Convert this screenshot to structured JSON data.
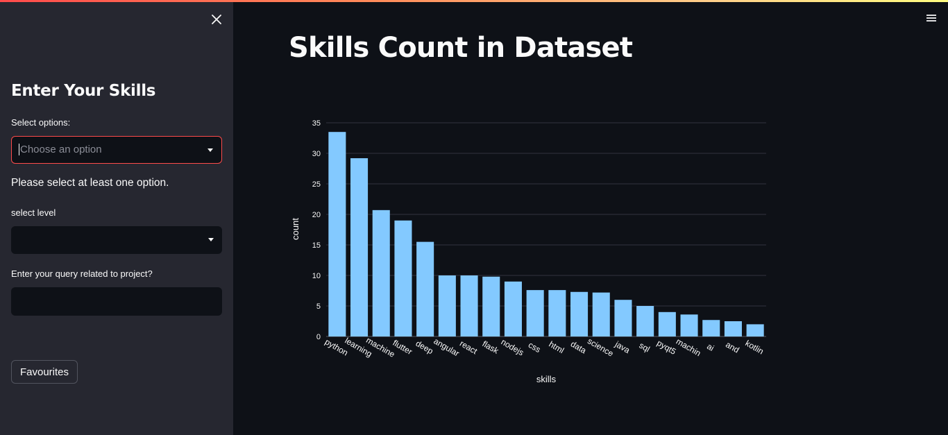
{
  "sidebar": {
    "close_icon": "close-icon",
    "heading": "Enter Your Skills",
    "skills_select": {
      "label": "Select options:",
      "placeholder": "Choose an option"
    },
    "warning": "Please select at least one option.",
    "level_select": {
      "label": "select level",
      "value": ""
    },
    "query": {
      "label": "Enter your query related to project?",
      "value": ""
    },
    "favourites_label": "Favourites"
  },
  "header": {
    "menu_icon": "hamburger-menu-icon"
  },
  "main": {
    "title": "Skills Count in Dataset"
  },
  "colors": {
    "bar": "#83c9ff",
    "accent": "#ff4b4b",
    "background": "#0e1117",
    "sidebar": "#262730"
  },
  "chart_data": {
    "type": "bar",
    "xlabel": "skills",
    "ylabel": "count",
    "ylim": [
      0,
      35
    ],
    "yticks": [
      0,
      5,
      10,
      15,
      20,
      25,
      30,
      35
    ],
    "grid": true,
    "categories": [
      "python",
      "learning",
      "machine",
      "flutter",
      "deep",
      "angular",
      "react",
      "flask",
      "nodejs",
      "css",
      "html",
      "data",
      "science",
      "java",
      "sql",
      "pyqt5",
      "machin",
      "ai",
      "and",
      "kotlin"
    ],
    "values": [
      33.5,
      29.2,
      20.7,
      19,
      15.5,
      10,
      10,
      9.8,
      9,
      7.6,
      7.6,
      7.3,
      7.2,
      6,
      5,
      4,
      3.6,
      2.7,
      2.5,
      2
    ]
  }
}
